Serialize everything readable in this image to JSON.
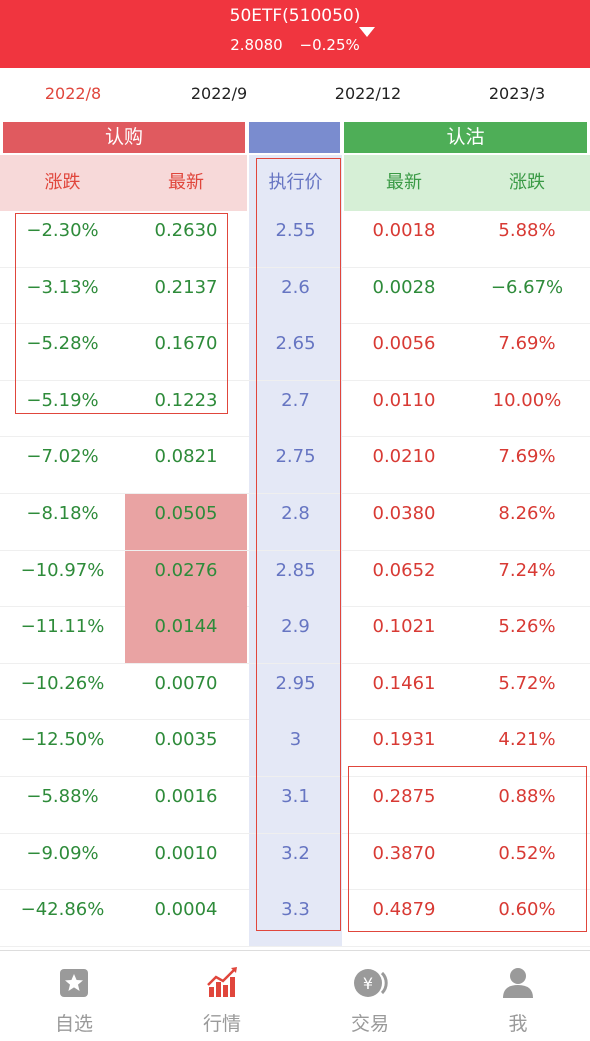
{
  "header": {
    "title": "50ETF(510050)",
    "price": "2.8080",
    "change": "−0.25%"
  },
  "months": [
    {
      "label": "2022/8",
      "active": true
    },
    {
      "label": "2022/9",
      "active": false
    },
    {
      "label": "2022/12",
      "active": false
    },
    {
      "label": "2023/3",
      "active": false
    }
  ],
  "categories": {
    "call": "认购",
    "strike": "",
    "put": "认沽"
  },
  "columns": {
    "call_change": "涨跌",
    "call_latest": "最新",
    "strike": "执行价",
    "put_latest": "最新",
    "put_change": "涨跌"
  },
  "rows": [
    {
      "call_change": "−2.30%",
      "call_latest": "0.2630",
      "strike": "2.55",
      "put_latest": "0.0018",
      "put_change": "5.88%",
      "put_latest_color": "red",
      "put_change_color": "red"
    },
    {
      "call_change": "−3.13%",
      "call_latest": "0.2137",
      "strike": "2.6",
      "put_latest": "0.0028",
      "put_change": "−6.67%",
      "put_latest_color": "green",
      "put_change_color": "green"
    },
    {
      "call_change": "−5.28%",
      "call_latest": "0.1670",
      "strike": "2.65",
      "put_latest": "0.0056",
      "put_change": "7.69%",
      "put_latest_color": "red",
      "put_change_color": "red"
    },
    {
      "call_change": "−5.19%",
      "call_latest": "0.1223",
      "strike": "2.7",
      "put_latest": "0.0110",
      "put_change": "10.00%",
      "put_latest_color": "red",
      "put_change_color": "red"
    },
    {
      "call_change": "−7.02%",
      "call_latest": "0.0821",
      "strike": "2.75",
      "put_latest": "0.0210",
      "put_change": "7.69%",
      "put_latest_color": "red",
      "put_change_color": "red"
    },
    {
      "call_change": "−8.18%",
      "call_latest": "0.0505",
      "strike": "2.8",
      "put_latest": "0.0380",
      "put_change": "8.26%",
      "put_latest_color": "red",
      "put_change_color": "red",
      "highlight": true
    },
    {
      "call_change": "−10.97%",
      "call_latest": "0.0276",
      "strike": "2.85",
      "put_latest": "0.0652",
      "put_change": "7.24%",
      "put_latest_color": "red",
      "put_change_color": "red",
      "highlight": true
    },
    {
      "call_change": "−11.11%",
      "call_latest": "0.0144",
      "strike": "2.9",
      "put_latest": "0.1021",
      "put_change": "5.26%",
      "put_latest_color": "red",
      "put_change_color": "red",
      "highlight": true
    },
    {
      "call_change": "−10.26%",
      "call_latest": "0.0070",
      "strike": "2.95",
      "put_latest": "0.1461",
      "put_change": "5.72%",
      "put_latest_color": "red",
      "put_change_color": "red"
    },
    {
      "call_change": "−12.50%",
      "call_latest": "0.0035",
      "strike": "3",
      "put_latest": "0.1931",
      "put_change": "4.21%",
      "put_latest_color": "red",
      "put_change_color": "red"
    },
    {
      "call_change": "−5.88%",
      "call_latest": "0.0016",
      "strike": "3.1",
      "put_latest": "0.2875",
      "put_change": "0.88%",
      "put_latest_color": "red",
      "put_change_color": "red"
    },
    {
      "call_change": "−9.09%",
      "call_latest": "0.0010",
      "strike": "3.2",
      "put_latest": "0.3870",
      "put_change": "0.52%",
      "put_latest_color": "red",
      "put_change_color": "red"
    },
    {
      "call_change": "−42.86%",
      "call_latest": "0.0004",
      "strike": "3.3",
      "put_latest": "0.4879",
      "put_change": "0.60%",
      "put_latest_color": "red",
      "put_change_color": "red"
    }
  ],
  "tabs": [
    {
      "label": "自选",
      "icon": "star-icon"
    },
    {
      "label": "行情",
      "icon": "chart-icon",
      "active": true
    },
    {
      "label": "交易",
      "icon": "yen-coin-icon"
    },
    {
      "label": "我",
      "icon": "user-icon"
    }
  ],
  "colors": {
    "header_bg": "#f0353f",
    "call_bar": "#e05a5f",
    "strike_bar": "#7a8ccf",
    "put_bar": "#4eae57",
    "up": "#d83a34",
    "down": "#2e8b3a",
    "annotation": "#e0463c"
  }
}
